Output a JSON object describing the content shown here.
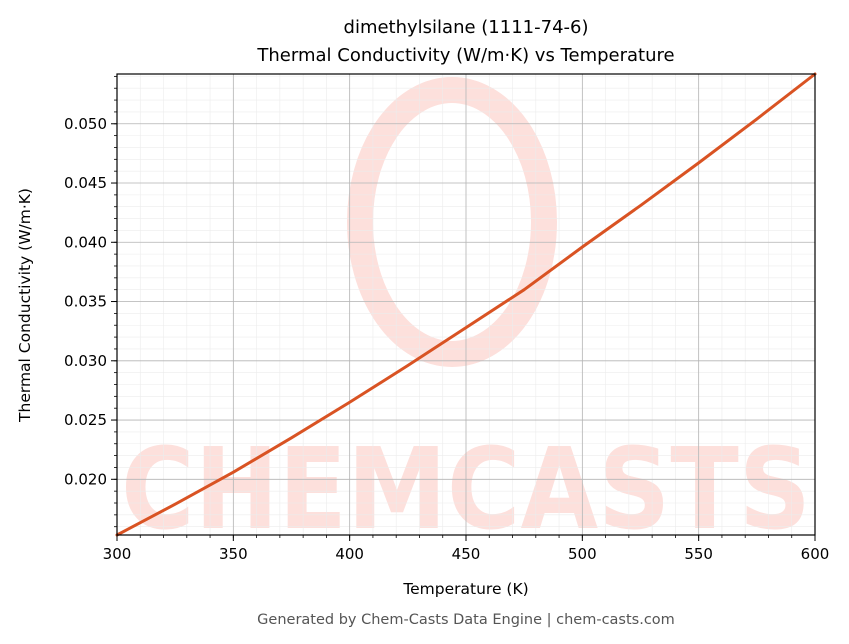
{
  "chart_data": {
    "type": "line",
    "title_line1": "dimethylsilane (1111-74-6)",
    "title_line2": "Thermal Conductivity (W/m·K) vs Temperature",
    "xlabel": "Temperature (K)",
    "ylabel": "Thermal Conductivity (W/m·K)",
    "xlim": [
      300,
      600
    ],
    "ylim": [
      0.0153,
      0.0542
    ],
    "xticks": [
      300,
      350,
      400,
      450,
      500,
      550,
      600
    ],
    "xtick_labels": [
      "300",
      "350",
      "400",
      "450",
      "500",
      "550",
      "600"
    ],
    "yticks": [
      0.02,
      0.025,
      0.03,
      0.035,
      0.04,
      0.045,
      0.05
    ],
    "ytick_labels": [
      "0.020",
      "0.025",
      "0.030",
      "0.035",
      "0.040",
      "0.045",
      "0.050"
    ],
    "grid": true,
    "series": [
      {
        "color": "#d95323",
        "x": [
          300,
          325,
          350,
          375,
          400,
          425,
          450,
          475,
          500,
          525,
          550,
          575,
          600
        ],
        "y": [
          0.0153,
          0.0179,
          0.0206,
          0.0235,
          0.0265,
          0.0296,
          0.0328,
          0.036,
          0.0396,
          0.0431,
          0.0467,
          0.0504,
          0.0542
        ]
      }
    ]
  },
  "footer": "Generated by Chem-Casts Data Engine | chem-casts.com",
  "watermark": {
    "text": "CHEMCASTS",
    "color": "#fde0dc"
  }
}
